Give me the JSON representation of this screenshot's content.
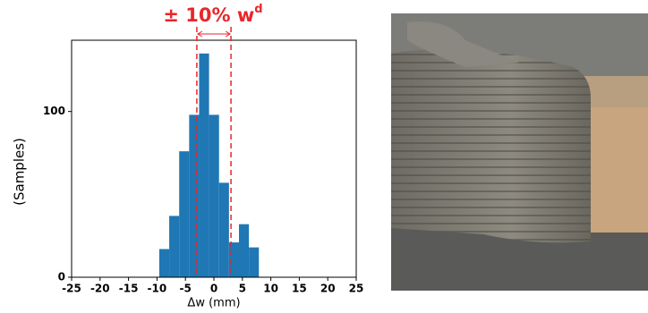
{
  "chart_data": {
    "type": "histogram",
    "annotation": "± 10% w",
    "annotation_superscript": "d",
    "xlabel": "Δw (mm)",
    "ylabel": "(Samples)",
    "bins": [
      -9.6,
      -7.85,
      -6.1,
      -4.35,
      -2.6,
      -0.85,
      0.9,
      2.65,
      4.4,
      6.15,
      7.9
    ],
    "values": [
      17,
      37,
      76,
      98,
      135,
      98,
      57,
      21,
      32,
      18
    ],
    "color": "#1f77b4",
    "vlines": [
      -3,
      3
    ],
    "vline_color": "#e8262a",
    "xlim": [
      -25,
      25
    ],
    "xticks": [
      -25,
      -20,
      -15,
      -10,
      -5,
      0,
      5,
      10,
      15,
      20,
      25
    ],
    "ylim": [
      0,
      143
    ],
    "yticks": [
      0,
      100
    ]
  }
}
